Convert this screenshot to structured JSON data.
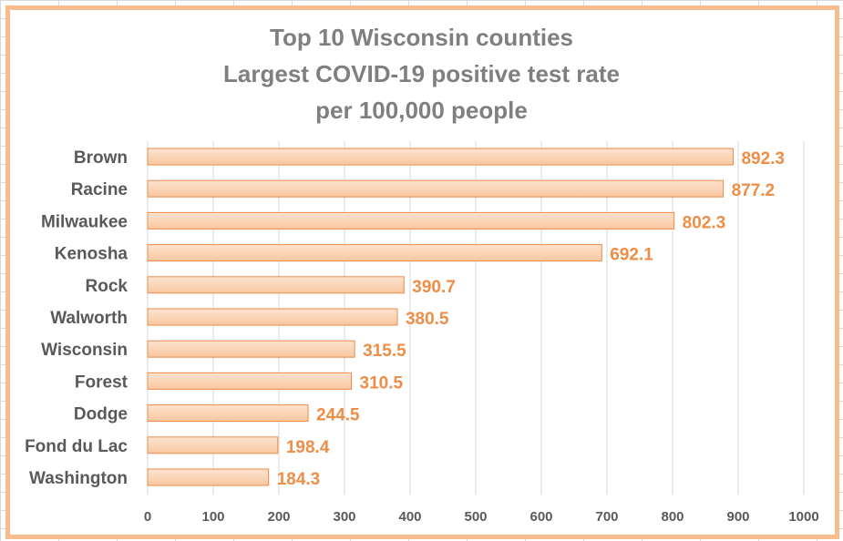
{
  "chart_data": {
    "type": "bar",
    "orientation": "horizontal",
    "title_lines": [
      "Top 10 Wisconsin counties",
      "Largest COVID-19 positive test rate",
      "per 100,000 people"
    ],
    "categories": [
      "Brown",
      "Racine",
      "Milwaukee",
      "Kenosha",
      "Rock",
      "Walworth",
      "Wisconsin",
      "Forest",
      "Dodge",
      "Fond du Lac",
      "Washington"
    ],
    "values": [
      892.3,
      877.2,
      802.3,
      692.1,
      390.7,
      380.5,
      315.5,
      310.5,
      244.5,
      198.4,
      184.3
    ],
    "value_labels": [
      "892.3",
      "877.2",
      "802.3",
      "692.1",
      "390.7",
      "380.5",
      "315.5",
      "310.5",
      "244.5",
      "198.4",
      "184.3"
    ],
    "xlim": [
      0,
      1000
    ],
    "x_ticks": [
      0,
      100,
      200,
      300,
      400,
      500,
      600,
      700,
      800,
      900,
      1000
    ],
    "x_tick_labels": [
      "0",
      "100",
      "200",
      "300",
      "400",
      "500",
      "600",
      "700",
      "800",
      "900",
      "1000"
    ],
    "xlabel": "",
    "ylabel": "",
    "grid": true,
    "legend": "none",
    "colors": {
      "bar_fill_top": "#fde3cf",
      "bar_fill_bottom": "#f8c7a0",
      "bar_stroke": "#ed8b45",
      "value_label": "#ef8d46",
      "frame": "#f7bd8e",
      "title": "#7f7f7f",
      "gridline": "#d9d9d9"
    }
  }
}
